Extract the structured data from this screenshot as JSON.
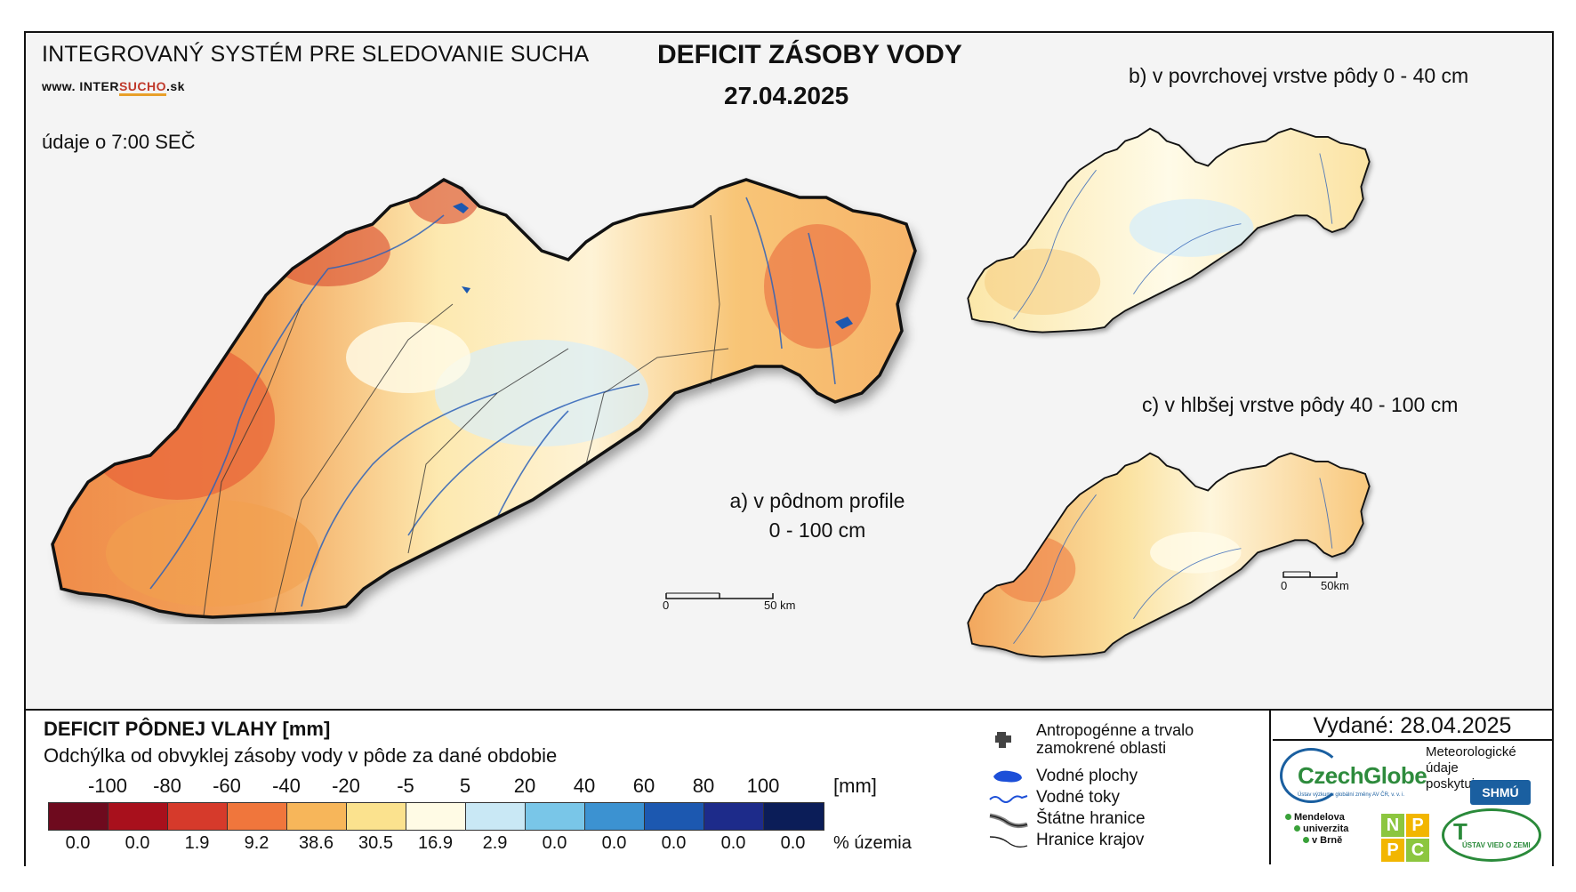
{
  "header": {
    "system_name": "INTEGROVANÝ SYSTÉM PRE SLEDOVANIE SUCHA",
    "url_prefix": "www. INTER",
    "url_highlight": "SUCHO",
    "url_suffix": ".sk",
    "data_time": "údaje o 7:00 SEČ",
    "title": "DEFICIT ZÁSOBY VODY",
    "date": "27.04.2025"
  },
  "maps": {
    "main_label_line1": "a) v pôdnom profile",
    "main_label_line2": "0 - 100 cm",
    "top_label": "b) v povrchovej vrstve pôdy 0 - 40 cm",
    "bottom_label": "c) v hlbšej vrstve pôdy 40 - 100 cm",
    "scale_zero": "0",
    "scale_main": "50 km",
    "scale_small": "50km"
  },
  "legend": {
    "title": "DEFICIT PÔDNEJ VLAHY [mm]",
    "subtitle": "Odchýlka od obvyklej zásoby vody v pôde za dané obdobie",
    "thresholds": [
      "-100",
      "-80",
      "-60",
      "-40",
      "-20",
      "-5",
      "5",
      "20",
      "40",
      "60",
      "80",
      "100"
    ],
    "unit": "[mm]",
    "colors": [
      "#6e0a1e",
      "#a8101c",
      "#d63a2b",
      "#f0763c",
      "#f7b65a",
      "#fbe28e",
      "#fffbe5",
      "#c9e8f5",
      "#79c6e8",
      "#3c92d1",
      "#1c58b0",
      "#1d2b8a",
      "#0b1d58"
    ],
    "percent": [
      "0.0",
      "0.0",
      "1.9",
      "9.2",
      "38.6",
      "30.5",
      "16.9",
      "2.9",
      "0.0",
      "0.0",
      "0.0",
      "0.0",
      "0.0"
    ],
    "percent_unit": "% územia"
  },
  "symbols": {
    "urban": "Antropogénne a trvalo zamokrené oblasti",
    "water_bodies": "Vodné plochy",
    "rivers": "Vodné toky",
    "state_border": "Štátne hranice",
    "region_border": "Hranice krajov"
  },
  "issued": "Vydané: 28.04.2025",
  "logos": {
    "czechglobe": "CzechGlobe",
    "czechglobe_small": "Ústav výzkumu globální změny AV ČR, v. v. i.",
    "meteo_line1": "Meteorologické",
    "meteo_line2": "údaje",
    "meteo_line3": "poskytuje:",
    "shmu": "SHMÚ",
    "mendel_line1": "Mendelova",
    "mendel_line2": "univerzita",
    "mendel_line3": "v Brně",
    "nppc": [
      "N",
      "P",
      "P",
      "C"
    ],
    "uvz_letter": "T",
    "uvz_text": "ÚSTAV VIED O ZEMI"
  }
}
